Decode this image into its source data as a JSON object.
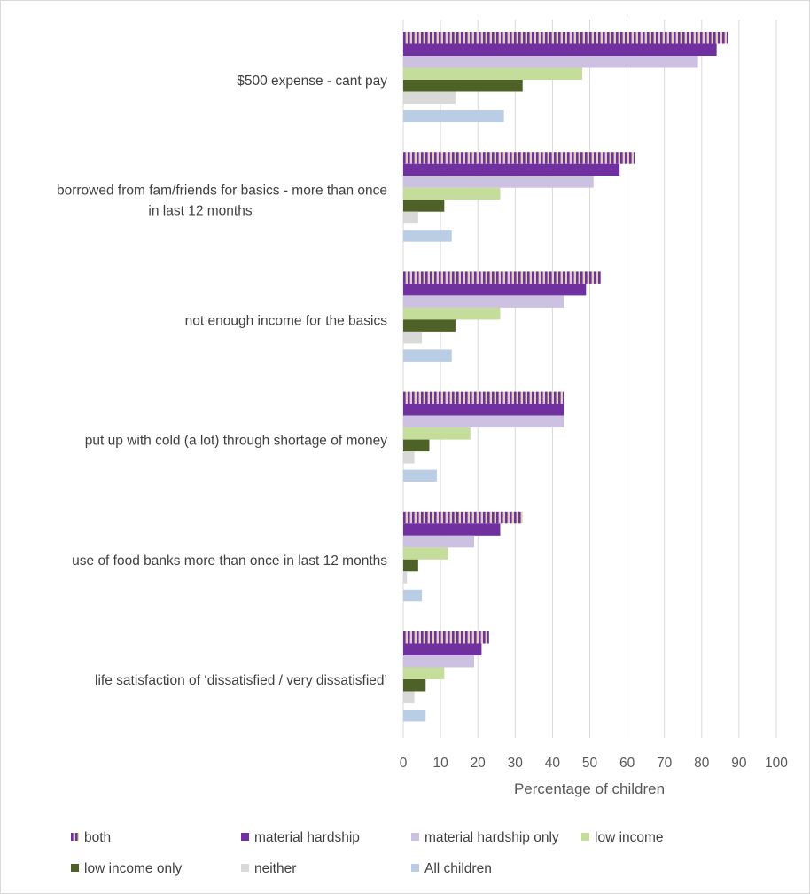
{
  "chart_data": {
    "type": "bar",
    "orientation": "horizontal",
    "categories": [
      [
        "$500 expense - cant pay"
      ],
      [
        "borrowed from fam/friends for basics - more than once",
        "in last 12 months"
      ],
      [
        "not enough income for the basics"
      ],
      [
        "put up with cold (a lot) through shortage of money"
      ],
      [
        "use of food banks more than once in last 12 months"
      ],
      [
        "life satisfaction of ‘dissatisfied / very dissatisfied’"
      ]
    ],
    "series": [
      {
        "name": "both",
        "color": "#7030a0",
        "pattern": "striped",
        "values": [
          87,
          62,
          53,
          43,
          32,
          23
        ]
      },
      {
        "name": "material hardship",
        "color": "#7030a0",
        "values": [
          84,
          58,
          49,
          43,
          26,
          21
        ]
      },
      {
        "name": "material hardship only",
        "color": "#ccc1e0",
        "values": [
          79,
          51,
          43,
          43,
          19,
          19
        ]
      },
      {
        "name": "low income",
        "color": "#c4dd9b",
        "values": [
          48,
          26,
          26,
          18,
          12,
          11
        ]
      },
      {
        "name": "low income only",
        "color": "#4e6228",
        "values": [
          32,
          11,
          14,
          7,
          4,
          6
        ]
      },
      {
        "name": "neither",
        "color": "#d9d9d9",
        "values": [
          14,
          4,
          5,
          3,
          1,
          3
        ]
      },
      {
        "name": "All children",
        "color": "#b9cde5",
        "values": [
          27,
          13,
          13,
          9,
          5,
          6
        ]
      }
    ],
    "xlabel": "Percentage of children",
    "xlim": [
      0,
      100
    ],
    "xticks": [
      "0",
      "10",
      "20",
      "30",
      "40",
      "50",
      "60",
      "70",
      "80",
      "90",
      "100"
    ],
    "grid": true,
    "legend_position": "bottom"
  }
}
